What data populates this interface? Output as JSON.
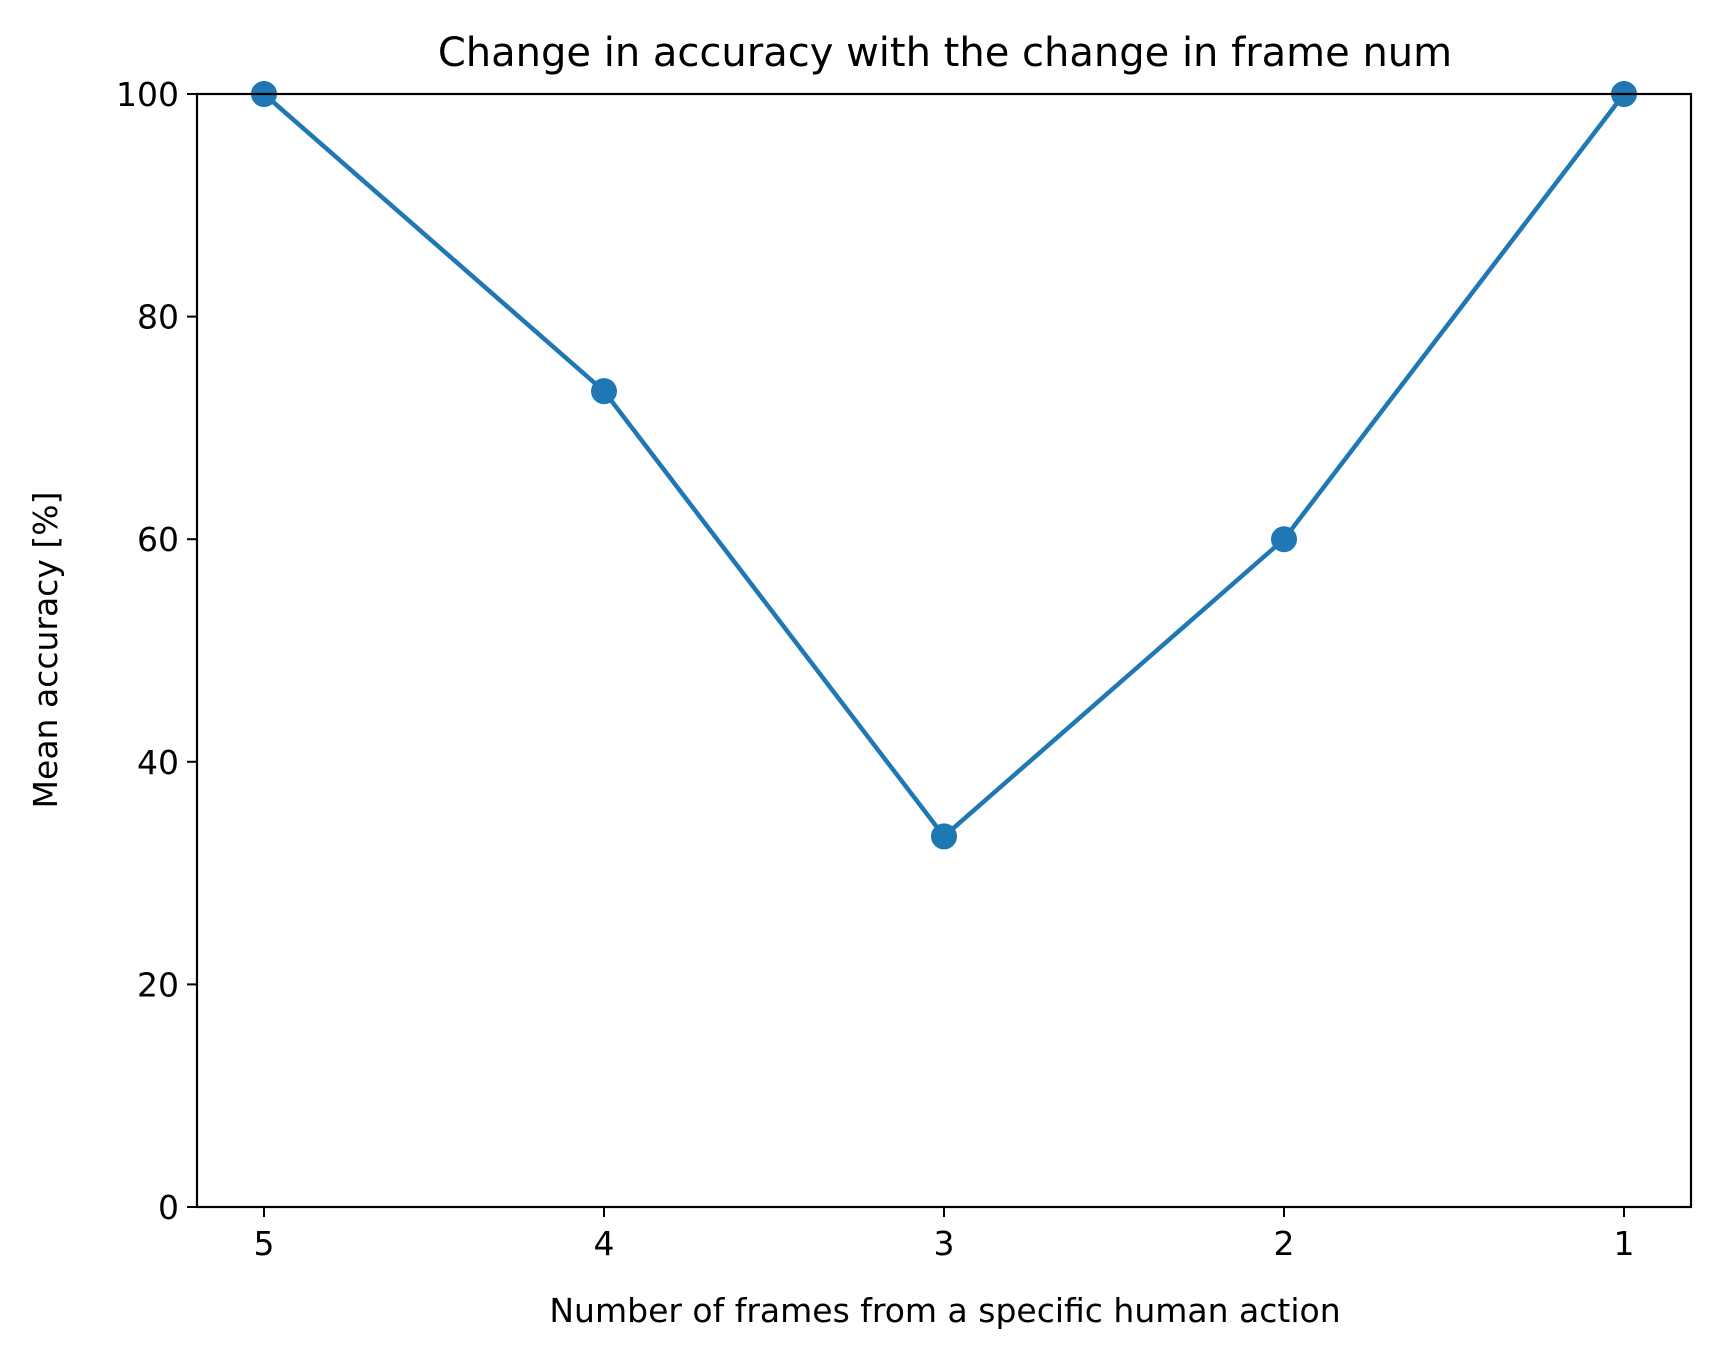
{
  "chart_data": {
    "type": "line",
    "title": "Change in accuracy with the change in frame num",
    "xlabel": "Number of frames from a specific human action",
    "ylabel": "Mean accuracy [%]",
    "categories": [
      "5",
      "4",
      "3",
      "2",
      "1"
    ],
    "series": [
      {
        "values": [
          100,
          73.3,
          33.3,
          60,
          100
        ],
        "color": "#1f77b4",
        "marker": "circle"
      }
    ],
    "ylim": [
      0,
      100
    ],
    "yticks": [
      0,
      20,
      40,
      60,
      80,
      100
    ],
    "grid": false,
    "legend": "none"
  }
}
